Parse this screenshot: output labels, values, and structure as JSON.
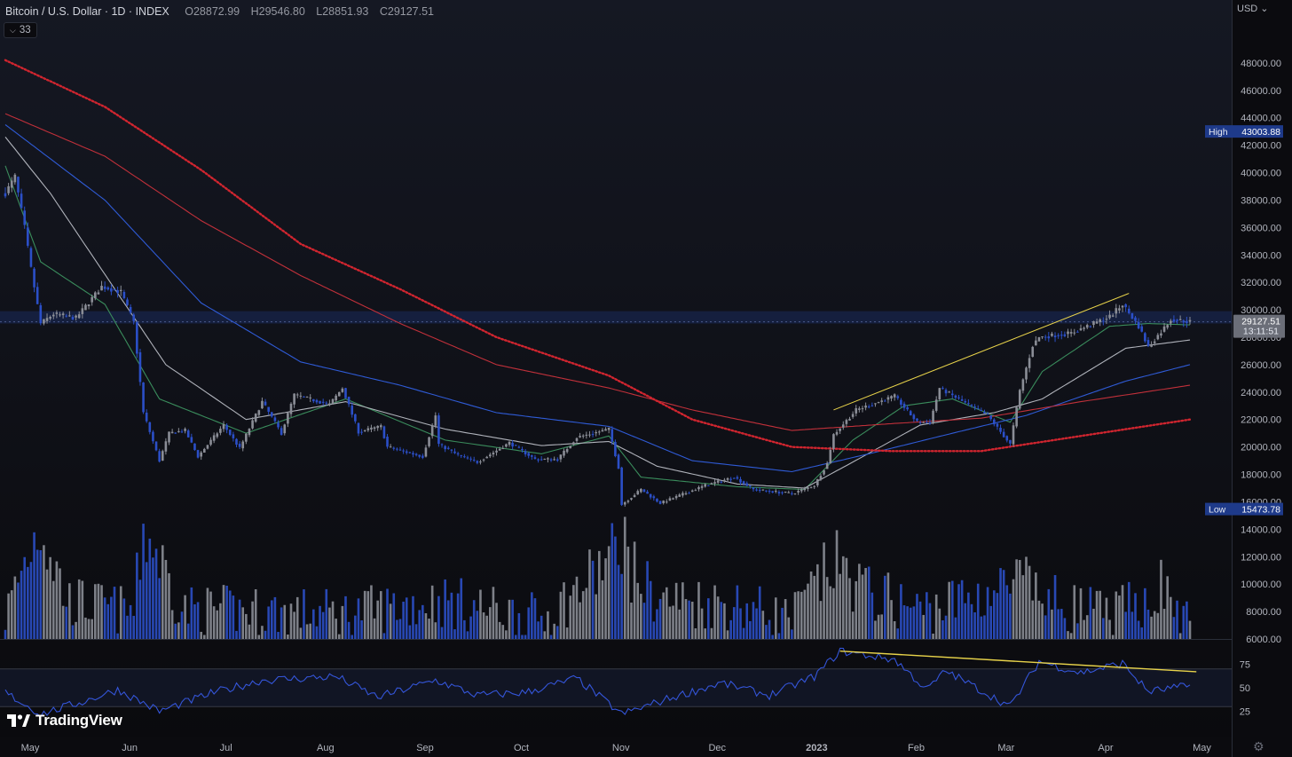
{
  "header": {
    "symbol": "Bitcoin / U.S. Dollar · 1D · INDEX",
    "open_label": "O",
    "open": "28872.99",
    "high_label": "H",
    "high": "29546.80",
    "low_label": "L",
    "low": "28851.93",
    "close_label": "C",
    "close": "29127.51",
    "indicator_count": "33",
    "currency": "USD"
  },
  "branding": {
    "name": "TradingView"
  },
  "colors": {
    "background": "#0b0b0f",
    "candle_up": "#8a8d96",
    "candle_down": "#2b4fc7",
    "ema_fast": "#3a8c5c",
    "ema_mid": "#b0b3bb",
    "ema_slow_blue": "#2f5bd6",
    "ma_red": "#c0303a",
    "ma_dotted_red": "#d0252f",
    "trendline": "#e8d34a",
    "rsi_line": "#3455d9",
    "price_box": "#6b6e78",
    "hl_box": "#1e3a8a"
  },
  "chart_data": {
    "type": "candlestick",
    "title": "Bitcoin / U.S. Dollar · 1D · INDEX",
    "price_axis": {
      "ticks": [
        6000,
        8000,
        10000,
        12000,
        14000,
        16000,
        18000,
        20000,
        22000,
        24000,
        26000,
        28000,
        30000,
        32000,
        34000,
        36000,
        38000,
        40000,
        42000,
        44000,
        46000,
        48000
      ],
      "ylim": [
        6000,
        50000
      ]
    },
    "x_axis": {
      "labels": [
        "May",
        "Jun",
        "Jul",
        "Aug",
        "Sep",
        "Oct",
        "Nov",
        "Dec",
        "2023",
        "Feb",
        "Mar",
        "Apr",
        "May"
      ],
      "range": [
        "2022-05-01",
        "2023-05-05"
      ]
    },
    "last_price": {
      "value": "29127.51",
      "countdown": "13:11:51"
    },
    "high_marker": {
      "label": "High",
      "value": "43003.88"
    },
    "low_marker": {
      "label": "Low",
      "value": "15473.78"
    },
    "resistance_zone": [
      29000,
      29900
    ],
    "price_anchors": [
      [
        "2022-05-01",
        38500
      ],
      [
        "2022-05-04",
        39700
      ],
      [
        "2022-05-07",
        36000
      ],
      [
        "2022-05-09",
        33000
      ],
      [
        "2022-05-12",
        29000
      ],
      [
        "2022-05-16",
        29700
      ],
      [
        "2022-05-23",
        29400
      ],
      [
        "2022-05-31",
        31700
      ],
      [
        "2022-06-06",
        31300
      ],
      [
        "2022-06-10",
        29100
      ],
      [
        "2022-06-13",
        22500
      ],
      [
        "2022-06-18",
        19000
      ],
      [
        "2022-06-21",
        21000
      ],
      [
        "2022-06-26",
        21200
      ],
      [
        "2022-06-30",
        19300
      ],
      [
        "2022-07-08",
        21600
      ],
      [
        "2022-07-13",
        19900
      ],
      [
        "2022-07-20",
        23300
      ],
      [
        "2022-07-26",
        21000
      ],
      [
        "2022-07-30",
        23800
      ],
      [
        "2022-08-10",
        23100
      ],
      [
        "2022-08-14",
        24300
      ],
      [
        "2022-08-19",
        21100
      ],
      [
        "2022-08-26",
        21500
      ],
      [
        "2022-08-28",
        20000
      ],
      [
        "2022-09-08",
        19300
      ],
      [
        "2022-09-12",
        22300
      ],
      [
        "2022-09-13",
        20200
      ],
      [
        "2022-09-19",
        19400
      ],
      [
        "2022-09-25",
        18900
      ],
      [
        "2022-10-05",
        20300
      ],
      [
        "2022-10-13",
        19100
      ],
      [
        "2022-10-20",
        19100
      ],
      [
        "2022-10-26",
        20700
      ],
      [
        "2022-11-05",
        21300
      ],
      [
        "2022-11-08",
        18500
      ],
      [
        "2022-11-09",
        15800
      ],
      [
        "2022-11-15",
        16900
      ],
      [
        "2022-11-21",
        15900
      ],
      [
        "2022-12-05",
        17200
      ],
      [
        "2022-12-14",
        17800
      ],
      [
        "2022-12-20",
        16900
      ],
      [
        "2023-01-01",
        16600
      ],
      [
        "2023-01-08",
        17200
      ],
      [
        "2023-01-12",
        18800
      ],
      [
        "2023-01-14",
        20900
      ],
      [
        "2023-01-21",
        22700
      ],
      [
        "2023-02-02",
        23700
      ],
      [
        "2023-02-09",
        21800
      ],
      [
        "2023-02-13",
        21800
      ],
      [
        "2023-02-16",
        24300
      ],
      [
        "2023-02-24",
        23200
      ],
      [
        "2023-03-03",
        22300
      ],
      [
        "2023-03-10",
        20200
      ],
      [
        "2023-03-13",
        24100
      ],
      [
        "2023-03-17",
        27400
      ],
      [
        "2023-03-19",
        28000
      ],
      [
        "2023-03-29",
        28300
      ],
      [
        "2023-04-10",
        29500
      ],
      [
        "2023-04-14",
        30400
      ],
      [
        "2023-04-19",
        28800
      ],
      [
        "2023-04-22",
        27300
      ],
      [
        "2023-04-26",
        28400
      ],
      [
        "2023-04-29",
        29300
      ],
      [
        "2023-05-05",
        29127
      ]
    ],
    "volume_anchors": [
      [
        "2022-05-01",
        8200
      ],
      [
        "2022-05-09",
        13800
      ],
      [
        "2022-05-12",
        15700
      ],
      [
        "2022-05-20",
        9400
      ],
      [
        "2022-06-10",
        8500
      ],
      [
        "2022-06-13",
        15100
      ],
      [
        "2022-06-18",
        12800
      ],
      [
        "2022-06-25",
        8700
      ],
      [
        "2022-07-15",
        8600
      ],
      [
        "2022-08-15",
        8400
      ],
      [
        "2022-09-13",
        9400
      ],
      [
        "2022-10-15",
        8000
      ],
      [
        "2022-10-26",
        10100
      ],
      [
        "2022-11-08",
        13500
      ],
      [
        "2022-11-09",
        15000
      ],
      [
        "2022-11-12",
        11800
      ],
      [
        "2022-11-20",
        9500
      ],
      [
        "2022-12-15",
        9100
      ],
      [
        "2023-01-01",
        8000
      ],
      [
        "2023-01-14",
        12400
      ],
      [
        "2023-01-25",
        10000
      ],
      [
        "2023-02-10",
        8600
      ],
      [
        "2023-03-10",
        10500
      ],
      [
        "2023-03-13",
        11000
      ],
      [
        "2023-03-20",
        9500
      ],
      [
        "2023-04-10",
        8200
      ],
      [
        "2023-04-19",
        9200
      ],
      [
        "2023-04-26",
        10500
      ],
      [
        "2023-05-05",
        7300
      ]
    ],
    "volume_axis": {
      "ylim": [
        6000,
        16000
      ]
    },
    "moving_averages": [
      {
        "key": "ema_fast",
        "anchors": [
          [
            "2022-05-01",
            40500
          ],
          [
            "2022-05-12",
            33500
          ],
          [
            "2022-06-01",
            30400
          ],
          [
            "2022-06-18",
            23500
          ],
          [
            "2022-07-15",
            21000
          ],
          [
            "2022-08-15",
            23500
          ],
          [
            "2022-09-15",
            20500
          ],
          [
            "2022-10-15",
            19500
          ],
          [
            "2022-11-05",
            20800
          ],
          [
            "2022-11-15",
            17800
          ],
          [
            "2022-12-15",
            17100
          ],
          [
            "2023-01-05",
            16900
          ],
          [
            "2023-01-20",
            20500
          ],
          [
            "2023-02-05",
            23000
          ],
          [
            "2023-02-20",
            23500
          ],
          [
            "2023-03-10",
            21800
          ],
          [
            "2023-03-20",
            25500
          ],
          [
            "2023-04-10",
            28800
          ],
          [
            "2023-04-22",
            29000
          ],
          [
            "2023-05-05",
            28900
          ]
        ]
      },
      {
        "key": "ema_mid",
        "anchors": [
          [
            "2022-05-01",
            42600
          ],
          [
            "2022-05-15",
            38500
          ],
          [
            "2022-06-05",
            31200
          ],
          [
            "2022-06-20",
            26000
          ],
          [
            "2022-07-15",
            22000
          ],
          [
            "2022-08-15",
            23300
          ],
          [
            "2022-09-15",
            21300
          ],
          [
            "2022-10-15",
            20100
          ],
          [
            "2022-11-05",
            20400
          ],
          [
            "2022-11-20",
            18600
          ],
          [
            "2022-12-15",
            17300
          ],
          [
            "2023-01-05",
            17000
          ],
          [
            "2023-01-20",
            18900
          ],
          [
            "2023-02-10",
            21600
          ],
          [
            "2023-03-05",
            22500
          ],
          [
            "2023-03-20",
            23500
          ],
          [
            "2023-04-15",
            27200
          ],
          [
            "2023-05-05",
            27800
          ]
        ]
      },
      {
        "key": "ema_slow_blue",
        "anchors": [
          [
            "2022-05-01",
            43500
          ],
          [
            "2022-06-01",
            38000
          ],
          [
            "2022-07-01",
            30500
          ],
          [
            "2022-08-01",
            26200
          ],
          [
            "2022-09-01",
            24500
          ],
          [
            "2022-10-01",
            22500
          ],
          [
            "2022-11-05",
            21500
          ],
          [
            "2022-12-01",
            19000
          ],
          [
            "2023-01-01",
            18200
          ],
          [
            "2023-01-25",
            19500
          ],
          [
            "2023-02-20",
            21000
          ],
          [
            "2023-03-15",
            22300
          ],
          [
            "2023-04-15",
            24800
          ],
          [
            "2023-05-05",
            26000
          ]
        ]
      },
      {
        "key": "ma_red",
        "anchors": [
          [
            "2022-05-01",
            44300
          ],
          [
            "2022-06-01",
            41200
          ],
          [
            "2022-07-01",
            36500
          ],
          [
            "2022-08-01",
            32500
          ],
          [
            "2022-09-01",
            29000
          ],
          [
            "2022-10-01",
            26000
          ],
          [
            "2022-11-05",
            24300
          ],
          [
            "2022-12-01",
            22700
          ],
          [
            "2023-01-01",
            21200
          ],
          [
            "2023-02-01",
            21700
          ],
          [
            "2023-03-01",
            22100
          ],
          [
            "2023-04-01",
            23300
          ],
          [
            "2023-05-05",
            24500
          ]
        ]
      },
      {
        "key": "ma_dotted_red",
        "anchors": [
          [
            "2022-05-01",
            48200
          ],
          [
            "2022-06-01",
            44800
          ],
          [
            "2022-07-01",
            40200
          ],
          [
            "2022-08-01",
            34800
          ],
          [
            "2022-09-01",
            31500
          ],
          [
            "2022-10-01",
            28000
          ],
          [
            "2022-11-05",
            25200
          ],
          [
            "2022-12-01",
            22000
          ],
          [
            "2023-01-01",
            20000
          ],
          [
            "2023-02-01",
            19700
          ],
          [
            "2023-03-01",
            19700
          ],
          [
            "2023-04-01",
            20800
          ],
          [
            "2023-05-05",
            22000
          ]
        ]
      }
    ],
    "trendlines": [
      {
        "from": [
          "2023-01-14",
          22700
        ],
        "to": [
          "2023-04-16",
          31200
        ]
      }
    ],
    "rsi": {
      "ticks": [
        25,
        50,
        75
      ],
      "ylim": [
        0,
        100
      ],
      "anchors": [
        [
          "2022-05-01",
          45
        ],
        [
          "2022-05-12",
          22
        ],
        [
          "2022-05-25",
          35
        ],
        [
          "2022-06-05",
          48
        ],
        [
          "2022-06-18",
          25
        ],
        [
          "2022-07-05",
          45
        ],
        [
          "2022-07-20",
          58
        ],
        [
          "2022-08-12",
          62
        ],
        [
          "2022-08-25",
          40
        ],
        [
          "2022-09-12",
          58
        ],
        [
          "2022-09-25",
          42
        ],
        [
          "2022-10-10",
          45
        ],
        [
          "2022-10-26",
          60
        ],
        [
          "2022-11-09",
          22
        ],
        [
          "2022-11-25",
          40
        ],
        [
          "2022-12-10",
          55
        ],
        [
          "2022-12-25",
          42
        ],
        [
          "2023-01-08",
          62
        ],
        [
          "2023-01-16",
          89
        ],
        [
          "2023-02-02",
          80
        ],
        [
          "2023-02-12",
          48
        ],
        [
          "2023-02-18",
          68
        ],
        [
          "2023-03-10",
          30
        ],
        [
          "2023-03-19",
          78
        ],
        [
          "2023-04-01",
          66
        ],
        [
          "2023-04-14",
          76
        ],
        [
          "2023-04-22",
          46
        ],
        [
          "2023-05-05",
          52
        ]
      ],
      "trendline": {
        "from": [
          "2023-01-16",
          89
        ],
        "to": [
          "2023-05-07",
          67
        ]
      }
    }
  }
}
